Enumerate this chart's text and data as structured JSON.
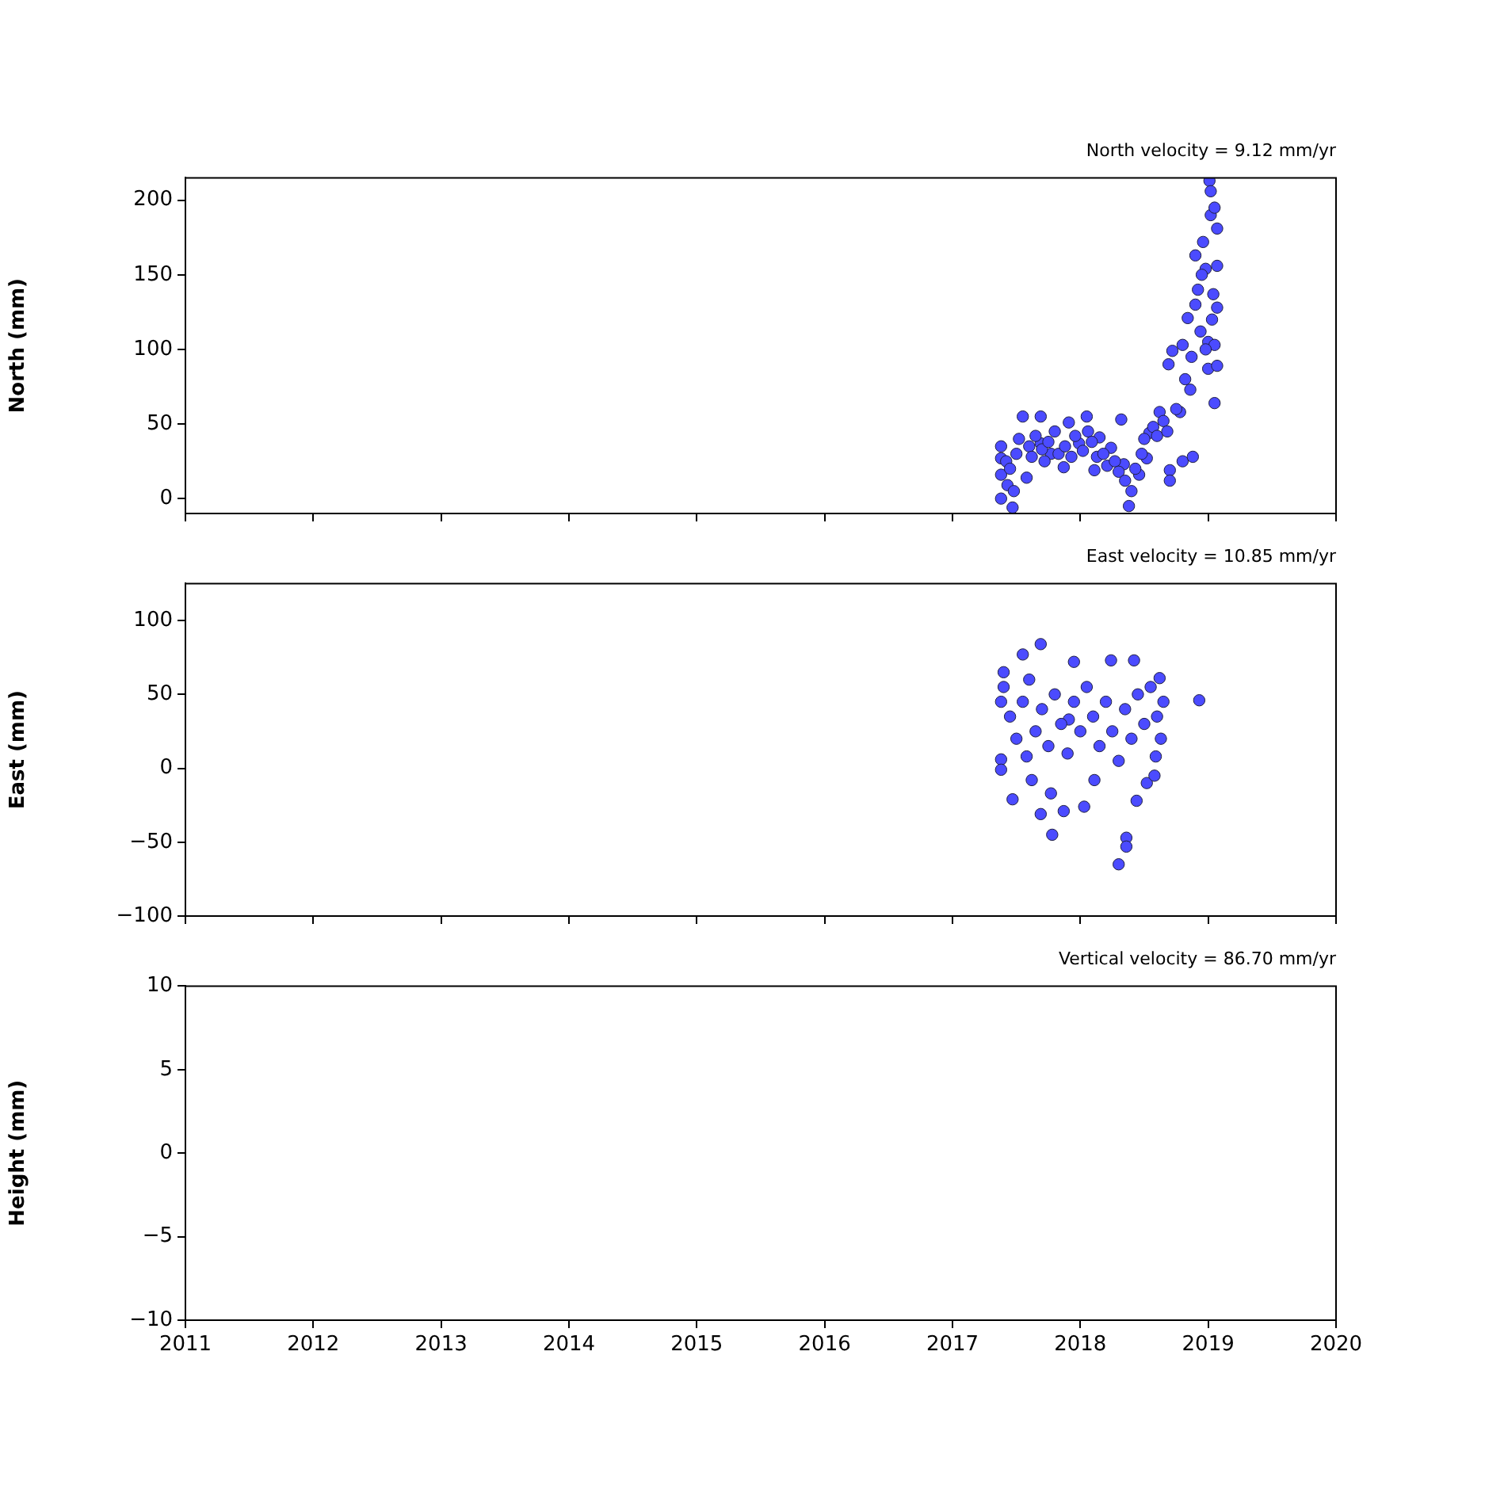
{
  "chart_data": [
    {
      "type": "scatter",
      "title": "North velocity = 9.12 mm/yr",
      "ylabel": "North (mm)",
      "marker": "circle",
      "tick_labels": "y",
      "xlim": [
        2011,
        2020
      ],
      "xticks": [
        2011,
        2012,
        2013,
        2014,
        2015,
        2016,
        2017,
        2018,
        2019,
        2020
      ],
      "ylim": [
        -10,
        215
      ],
      "yticks": [
        0,
        50,
        100,
        150,
        200
      ],
      "series": [
        {
          "color": "#4b4bff",
          "x": [
            2017.38,
            2017.38,
            2017.38,
            2017.47,
            2017.38,
            2017.43,
            2017.48,
            2017.55,
            2017.58,
            2017.69,
            2017.69,
            2017.77,
            2017.87,
            2017.91,
            2017.99,
            2018.05,
            2018.11,
            2018.15,
            2018.24,
            2018.32,
            2018.34,
            2018.4,
            2018.38,
            2018.46,
            2018.52,
            2018.54,
            2018.62,
            2018.7,
            2018.7,
            2018.69,
            2018.72,
            2018.78,
            2018.8,
            2018.8,
            2018.84,
            2018.86,
            2018.88,
            2018.9,
            2018.92,
            2018.94,
            2018.96,
            2018.98,
            2019.0,
            2019.0,
            2019.01,
            2019.02,
            2019.02,
            2019.04,
            2019.05,
            2019.05,
            2019.07,
            2019.07,
            2019.07,
            2019.07,
            2019.05,
            2017.42,
            2017.45,
            2017.5,
            2017.52,
            2017.6,
            2017.62,
            2017.65,
            2017.7,
            2017.72,
            2017.75,
            2017.8,
            2017.83,
            2017.88,
            2017.93,
            2017.96,
            2018.02,
            2018.06,
            2018.09,
            2018.13,
            2018.18,
            2018.21,
            2018.27,
            2018.3,
            2018.35,
            2018.43,
            2018.48,
            2018.5,
            2018.57,
            2018.6,
            2018.65,
            2018.68,
            2018.75,
            2018.82,
            2018.87,
            2018.9,
            2018.95,
            2019.03,
            2018.98
          ],
          "values": [
            35,
            16,
            0,
            -6,
            27,
            9,
            5,
            55,
            14,
            55,
            37,
            30,
            21,
            51,
            37,
            55,
            19,
            41,
            34,
            53,
            23,
            5,
            -5,
            16,
            27,
            44,
            58,
            19,
            12,
            90,
            99,
            58,
            25,
            103,
            121,
            73,
            28,
            163,
            140,
            112,
            172,
            154,
            105,
            87,
            213,
            206,
            190,
            137,
            195,
            64,
            181,
            156,
            89,
            128,
            103,
            25,
            20,
            30,
            40,
            35,
            28,
            42,
            33,
            25,
            38,
            45,
            30,
            35,
            28,
            42,
            32,
            45,
            38,
            28,
            30,
            22,
            25,
            18,
            12,
            20,
            30,
            40,
            48,
            42,
            52,
            45,
            60,
            80,
            95,
            130,
            150,
            120,
            100
          ]
        }
      ]
    },
    {
      "type": "scatter",
      "title": "East velocity = 10.85 mm/yr",
      "ylabel": "East (mm)",
      "marker": "circle",
      "tick_labels": "y",
      "xlim": [
        2011,
        2020
      ],
      "xticks": [
        2011,
        2012,
        2013,
        2014,
        2015,
        2016,
        2017,
        2018,
        2019,
        2020
      ],
      "ylim": [
        -100,
        125
      ],
      "yticks": [
        -100,
        -50,
        0,
        50,
        100
      ],
      "series": [
        {
          "color": "#4b4bff",
          "x": [
            2017.38,
            2017.38,
            2017.38,
            2017.4,
            2017.47,
            2017.55,
            2017.58,
            2017.62,
            2017.69,
            2017.69,
            2017.78,
            2017.77,
            2017.87,
            2017.95,
            2018.03,
            2017.91,
            2018.11,
            2018.24,
            2018.42,
            2018.36,
            2018.36,
            2018.3,
            2018.44,
            2018.52,
            2018.59,
            2018.62,
            2018.65,
            2018.93,
            2017.4,
            2017.45,
            2017.5,
            2017.55,
            2017.6,
            2017.65,
            2017.7,
            2017.75,
            2017.8,
            2017.85,
            2017.9,
            2017.95,
            2018.0,
            2018.05,
            2018.1,
            2018.15,
            2018.2,
            2018.25,
            2018.3,
            2018.35,
            2018.4,
            2018.45,
            2018.5,
            2018.55,
            2018.6,
            2018.63,
            2018.58
          ],
          "values": [
            45,
            6,
            -1,
            65,
            -21,
            77,
            8,
            -8,
            84,
            -31,
            -45,
            -17,
            -29,
            72,
            -26,
            33,
            -8,
            73,
            73,
            -47,
            -53,
            -65,
            -22,
            -10,
            8,
            61,
            45,
            46,
            55,
            35,
            20,
            45,
            60,
            25,
            40,
            15,
            50,
            30,
            10,
            45,
            25,
            55,
            35,
            15,
            45,
            25,
            5,
            40,
            20,
            50,
            30,
            55,
            35,
            20,
            -5
          ]
        }
      ]
    },
    {
      "type": "scatter",
      "title": "Vertical velocity = 86.70 mm/yr",
      "ylabel": "Height (mm)",
      "xlim": [
        2011,
        2020
      ],
      "xticks": [
        2011,
        2012,
        2013,
        2014,
        2015,
        2016,
        2017,
        2018,
        2019,
        2020
      ],
      "ylim": [
        -10,
        10
      ],
      "yticks": [
        -10,
        -5,
        0,
        5,
        10
      ]
    }
  ]
}
